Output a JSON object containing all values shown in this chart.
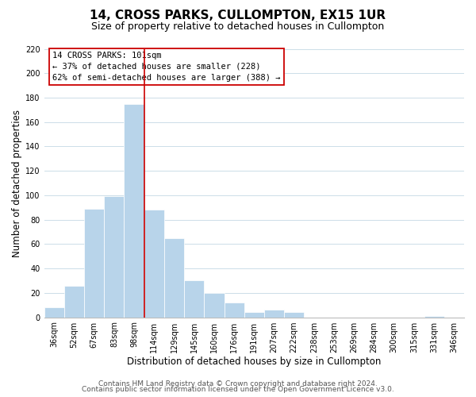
{
  "title": "14, CROSS PARKS, CULLOMPTON, EX15 1UR",
  "subtitle": "Size of property relative to detached houses in Cullompton",
  "xlabel": "Distribution of detached houses by size in Cullompton",
  "ylabel": "Number of detached properties",
  "categories": [
    "36sqm",
    "52sqm",
    "67sqm",
    "83sqm",
    "98sqm",
    "114sqm",
    "129sqm",
    "145sqm",
    "160sqm",
    "176sqm",
    "191sqm",
    "207sqm",
    "222sqm",
    "238sqm",
    "253sqm",
    "269sqm",
    "284sqm",
    "300sqm",
    "315sqm",
    "331sqm",
    "346sqm"
  ],
  "values": [
    8,
    26,
    89,
    99,
    175,
    88,
    65,
    30,
    20,
    12,
    4,
    6,
    4,
    0,
    0,
    0,
    0,
    0,
    0,
    1,
    0
  ],
  "bar_color": "#b8d4ea",
  "highlight_line_color": "#cc0000",
  "annotation_title": "14 CROSS PARKS: 101sqm",
  "annotation_line1": "← 37% of detached houses are smaller (228)",
  "annotation_line2": "62% of semi-detached houses are larger (388) →",
  "annotation_box_color": "#ffffff",
  "annotation_box_edge": "#cc0000",
  "ylim": [
    0,
    220
  ],
  "yticks": [
    0,
    20,
    40,
    60,
    80,
    100,
    120,
    140,
    160,
    180,
    200,
    220
  ],
  "footer_line1": "Contains HM Land Registry data © Crown copyright and database right 2024.",
  "footer_line2": "Contains public sector information licensed under the Open Government Licence v3.0.",
  "background_color": "#ffffff",
  "grid_color": "#ccdde8",
  "title_fontsize": 11,
  "subtitle_fontsize": 9,
  "axis_label_fontsize": 8.5,
  "tick_fontsize": 7,
  "annotation_fontsize": 7.5,
  "footer_fontsize": 6.5
}
